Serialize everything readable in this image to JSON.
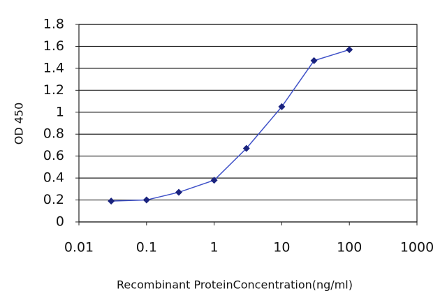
{
  "chart_data": {
    "type": "line",
    "x_label": "Recombinant ProteinConcentration(ng/ml)",
    "y_label": "OD 450",
    "x": [
      0.03,
      0.1,
      0.3,
      1,
      3,
      10,
      30,
      100
    ],
    "series": [
      {
        "color": "#1a237e",
        "line_color": "#3f51c8",
        "values": [
          0.19,
          0.2,
          0.27,
          0.38,
          0.67,
          1.05,
          1.47,
          1.57
        ]
      }
    ],
    "xscale": "log",
    "xlim": [
      0.01,
      1000
    ],
    "xticks": [
      0.01,
      0.1,
      1,
      10,
      100,
      1000
    ],
    "ylim": [
      0,
      1.8
    ],
    "yticks": [
      0,
      0.2,
      0.4,
      0.6,
      0.8,
      1,
      1.2,
      1.4,
      1.6,
      1.8
    ],
    "grid": true
  }
}
